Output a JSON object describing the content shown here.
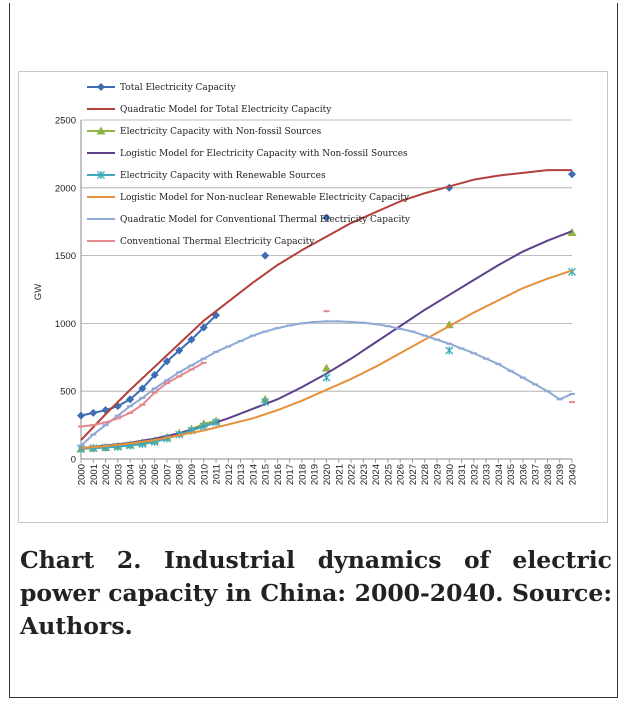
{
  "caption": "Chart 2. Industrial dynamics of electric power capacity in China: 2000-2040. Source: Authors.",
  "chart_data": {
    "type": "line",
    "title": "",
    "xlabel": "",
    "ylabel": "GW",
    "xlim": [
      2000,
      2040
    ],
    "ylim": [
      0,
      2500
    ],
    "yticks": [
      0,
      500,
      1000,
      1500,
      2000,
      2500
    ],
    "xticks": [
      2000,
      2001,
      2002,
      2003,
      2004,
      2005,
      2006,
      2007,
      2008,
      2009,
      2010,
      2011,
      2012,
      2013,
      2014,
      2015,
      2016,
      2017,
      2018,
      2019,
      2020,
      2021,
      2022,
      2023,
      2024,
      2025,
      2026,
      2027,
      2028,
      2029,
      2030,
      2031,
      2032,
      2033,
      2034,
      2035,
      2036,
      2037,
      2038,
      2039,
      2040
    ],
    "grid": "horizontal",
    "legend_position": "top-left",
    "series": [
      {
        "name": "Total Electricity Capacity",
        "color": "#3d6db3",
        "marker": "diamond",
        "line": true,
        "x": [
          2000,
          2001,
          2002,
          2003,
          2004,
          2005,
          2006,
          2007,
          2008,
          2009,
          2010,
          2011,
          2015,
          2020,
          2030,
          2040
        ],
        "y": [
          320,
          340,
          360,
          390,
          440,
          520,
          620,
          720,
          800,
          880,
          970,
          1060,
          1500,
          1780,
          2000,
          2100
        ],
        "line_x_max": 2011
      },
      {
        "name": "Quadratic Model for Total Electricity Capacity",
        "color": "#b3403a",
        "marker": "none",
        "line": true,
        "x": [
          2000,
          2002,
          2004,
          2006,
          2008,
          2010,
          2012,
          2014,
          2016,
          2018,
          2020,
          2022,
          2024,
          2026,
          2028,
          2030,
          2032,
          2034,
          2036,
          2038,
          2040
        ],
        "y": [
          140,
          330,
          510,
          680,
          850,
          1020,
          1160,
          1300,
          1430,
          1540,
          1640,
          1740,
          1820,
          1900,
          1960,
          2010,
          2060,
          2090,
          2110,
          2130,
          2130
        ]
      },
      {
        "name": "Electricity Capacity with Non-fossil Sources",
        "color": "#8fb346",
        "marker": "triangle",
        "line": true,
        "x": [
          2000,
          2001,
          2002,
          2003,
          2004,
          2005,
          2006,
          2007,
          2008,
          2009,
          2010,
          2011,
          2015,
          2020,
          2030,
          2040
        ],
        "y": [
          75,
          80,
          85,
          95,
          105,
          120,
          135,
          160,
          190,
          220,
          260,
          280,
          440,
          670,
          990,
          1670
        ],
        "line_x_max": 2011
      },
      {
        "name": "Logistic Model for Electricity Capacity with Non-fossil Sources",
        "color": "#5e3f8c",
        "marker": "none",
        "line": true,
        "x": [
          2000,
          2002,
          2004,
          2006,
          2008,
          2010,
          2012,
          2014,
          2016,
          2018,
          2020,
          2022,
          2024,
          2026,
          2028,
          2030,
          2032,
          2034,
          2036,
          2038,
          2040
        ],
        "y": [
          80,
          100,
          120,
          150,
          190,
          240,
          300,
          370,
          440,
          530,
          630,
          740,
          860,
          980,
          1100,
          1210,
          1320,
          1430,
          1530,
          1610,
          1680
        ]
      },
      {
        "name": "Electricity Capacity with Renewable Sources",
        "color": "#3fa8bd",
        "marker": "x",
        "line": true,
        "x": [
          2000,
          2001,
          2002,
          2003,
          2004,
          2005,
          2006,
          2007,
          2008,
          2009,
          2010,
          2011,
          2015,
          2020,
          2030,
          2040
        ],
        "y": [
          75,
          80,
          85,
          90,
          100,
          110,
          125,
          150,
          180,
          210,
          240,
          270,
          420,
          600,
          800,
          1380
        ],
        "line_x_max": 2011
      },
      {
        "name": "Logistic Model for Non-nuclear Renewable Electricity Capacity",
        "color": "#e69138",
        "marker": "none",
        "line": true,
        "x": [
          2000,
          2002,
          2004,
          2006,
          2008,
          2010,
          2012,
          2014,
          2016,
          2018,
          2020,
          2022,
          2024,
          2026,
          2028,
          2030,
          2032,
          2034,
          2036,
          2038,
          2040
        ],
        "y": [
          80,
          95,
          115,
          140,
          175,
          210,
          255,
          300,
          360,
          430,
          510,
          590,
          680,
          780,
          880,
          980,
          1080,
          1170,
          1260,
          1330,
          1390
        ]
      },
      {
        "name": "Quadratic Model for Conventional Thermal Electricity Capacity",
        "color": "#8fa9d6",
        "marker": "dash",
        "line": true,
        "x": [
          2000,
          2001,
          2002,
          2003,
          2004,
          2005,
          2006,
          2007,
          2008,
          2009,
          2010,
          2011,
          2012,
          2013,
          2014,
          2015,
          2016,
          2017,
          2018,
          2019,
          2020,
          2021,
          2022,
          2023,
          2024,
          2025,
          2026,
          2027,
          2028,
          2029,
          2030,
          2031,
          2032,
          2033,
          2034,
          2035,
          2036,
          2037,
          2038,
          2039,
          2040
        ],
        "y": [
          100,
          180,
          250,
          320,
          390,
          450,
          520,
          580,
          640,
          690,
          740,
          790,
          830,
          870,
          910,
          940,
          965,
          985,
          1000,
          1010,
          1015,
          1015,
          1010,
          1005,
          995,
          980,
          960,
          940,
          910,
          880,
          850,
          815,
          780,
          740,
          700,
          650,
          600,
          550,
          500,
          440,
          480
        ]
      },
      {
        "name": "Conventional Thermal Electricity Capacity",
        "color": "#e48a8f",
        "marker": "dash",
        "line": true,
        "x": [
          2000,
          2001,
          2002,
          2003,
          2004,
          2005,
          2006,
          2007,
          2008,
          2009,
          2010,
          2020,
          2040
        ],
        "y": [
          240,
          250,
          270,
          300,
          340,
          400,
          490,
          560,
          610,
          660,
          710,
          1090,
          420
        ],
        "line_x_max": 2010
      }
    ]
  }
}
